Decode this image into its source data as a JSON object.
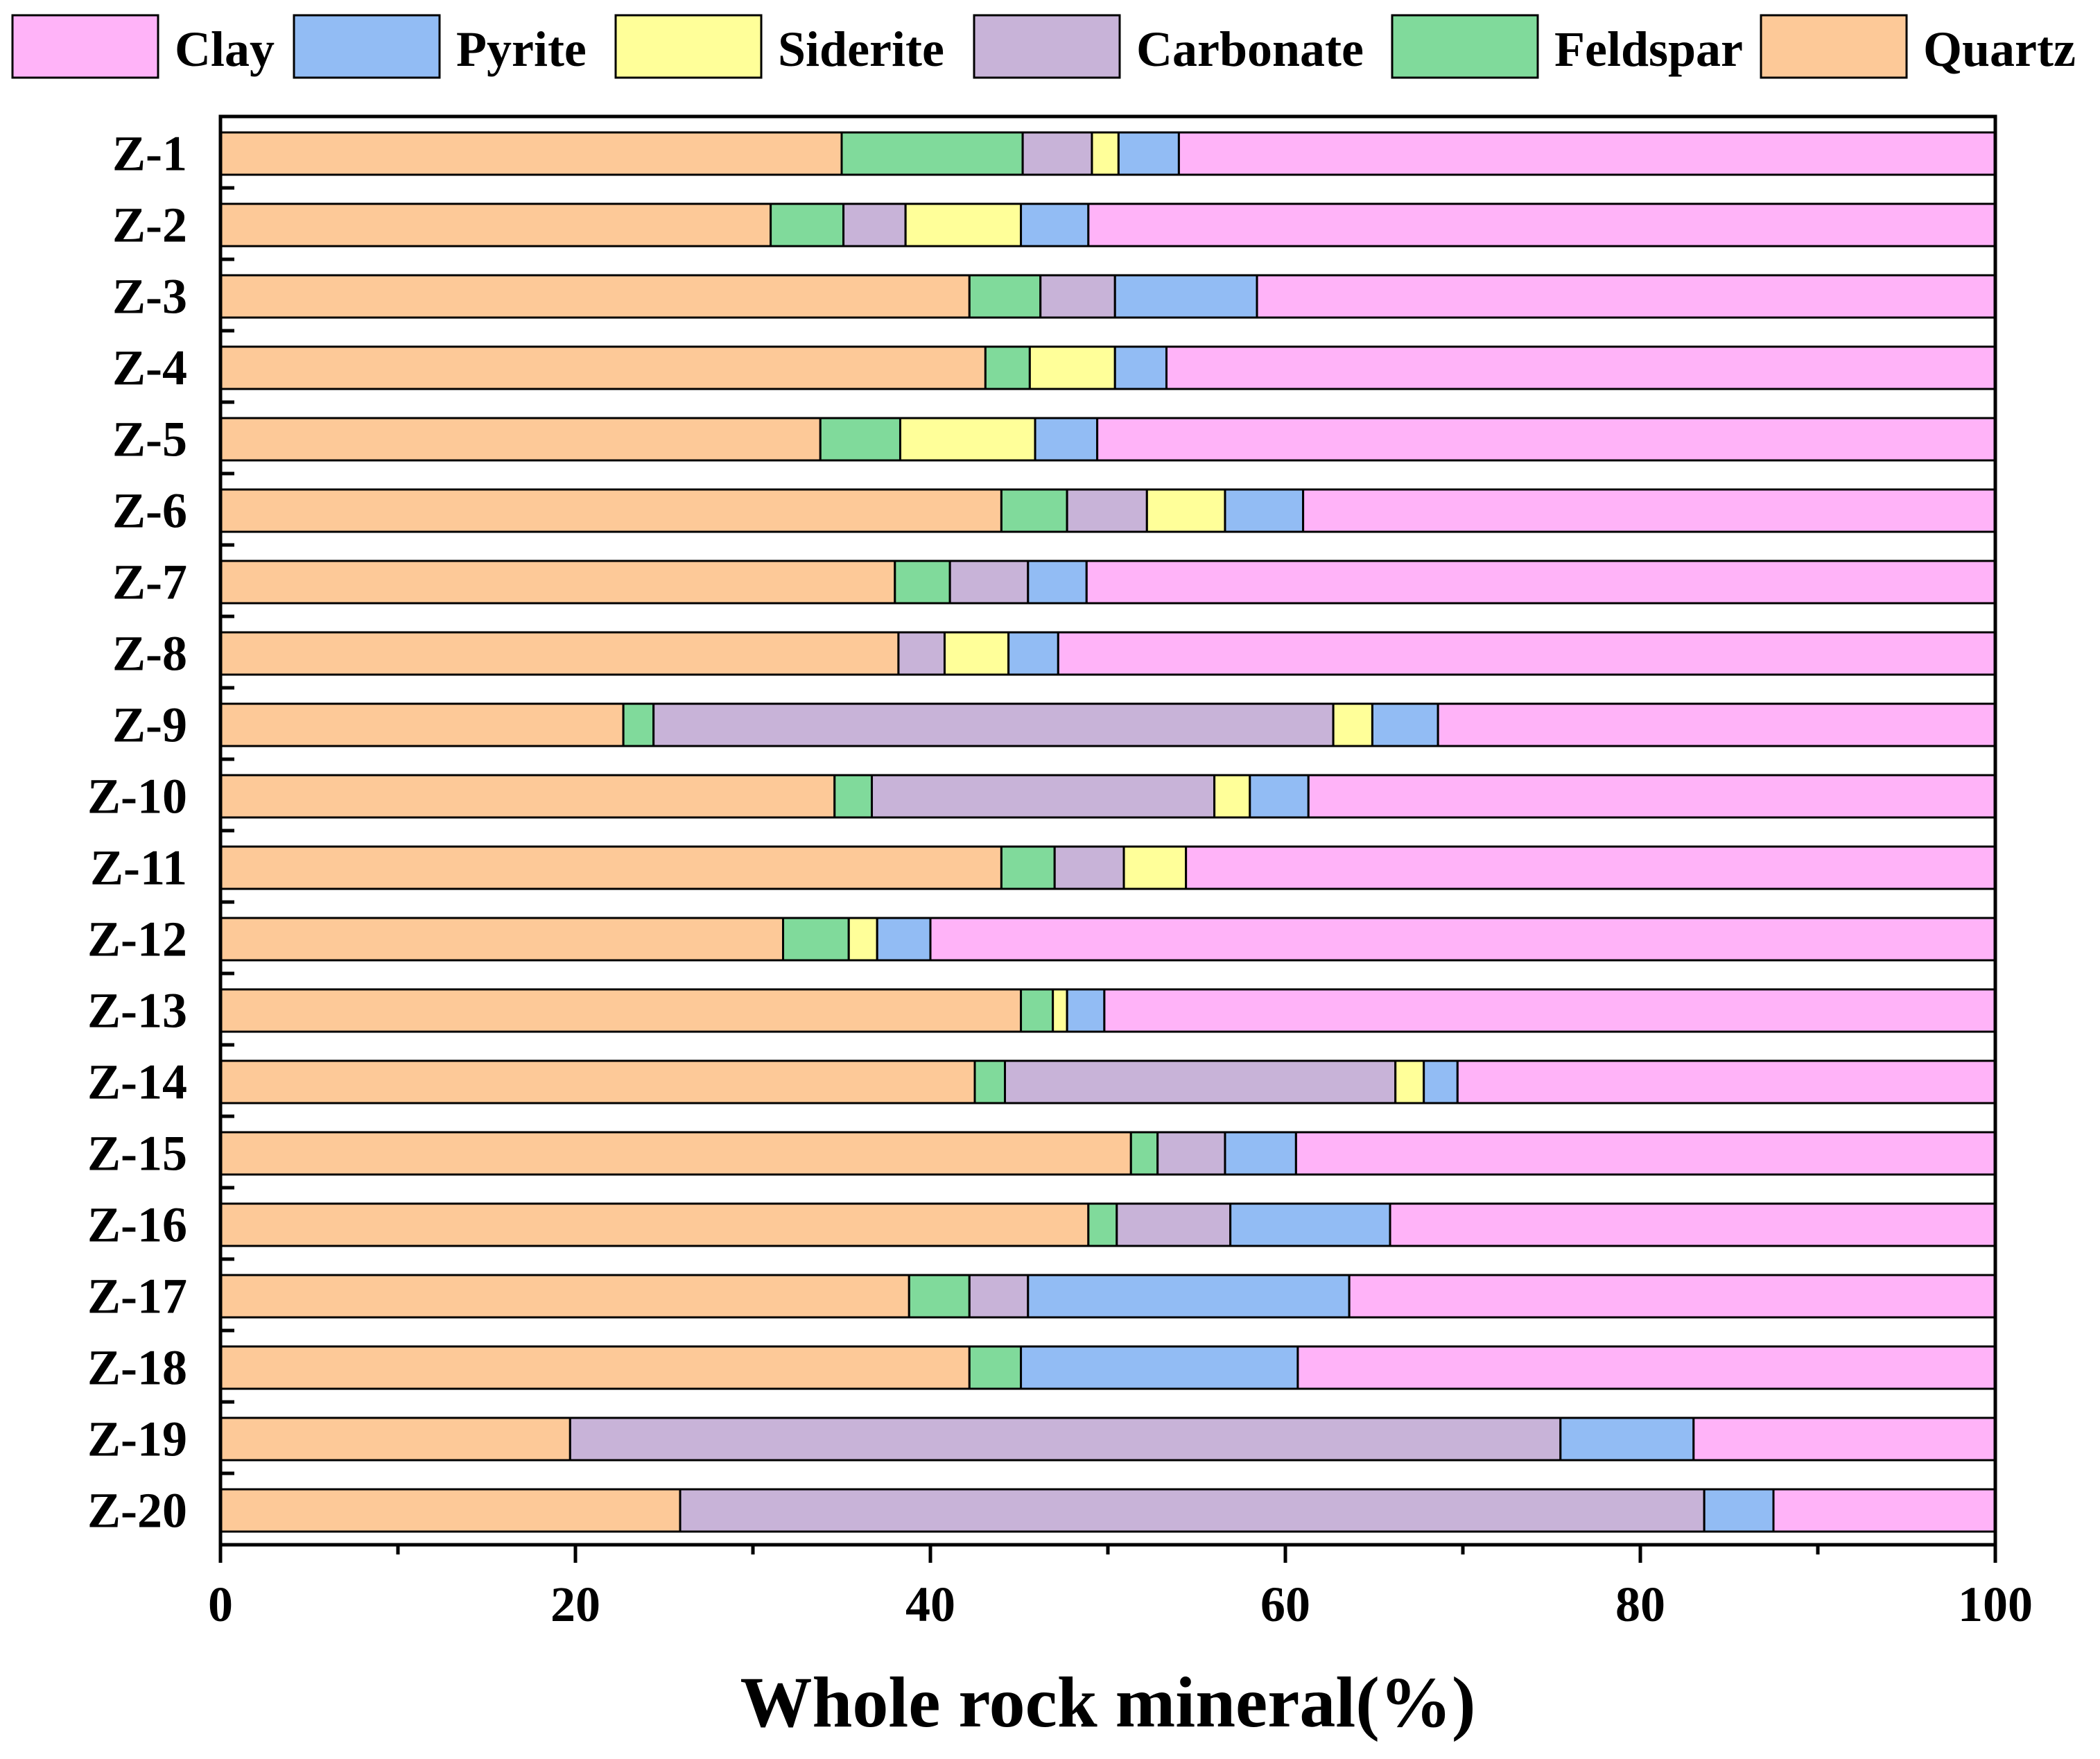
{
  "chart_data": {
    "type": "bar",
    "orientation": "horizontal",
    "stacked": true,
    "title": "",
    "xlabel": "Whole rock mineral(%)",
    "ylabel": "",
    "xlim": [
      0,
      100
    ],
    "xticks": [
      "0",
      "20",
      "40",
      "60",
      "80",
      "100"
    ],
    "grid": false,
    "legend_position": "top",
    "categories": [
      "Z-1",
      "Z-2",
      "Z-3",
      "Z-4",
      "Z-5",
      "Z-6",
      "Z-7",
      "Z-8",
      "Z-9",
      "Z-10",
      "Z-11",
      "Z-12",
      "Z-13",
      "Z-14",
      "Z-15",
      "Z-16",
      "Z-17",
      "Z-18",
      "Z-19",
      "Z-20"
    ],
    "legend": [
      "Clay",
      "Pyrite",
      "Siderite",
      "Carbonate",
      "Feldspar",
      "Quartz"
    ],
    "series": [
      {
        "name": "Quartz",
        "color": "#FDC998",
        "values": [
          35,
          31,
          42.2,
          43.1,
          33.8,
          44,
          38,
          38.2,
          22.7,
          34.6,
          44,
          31.7,
          45.1,
          42.5,
          51.3,
          48.9,
          38.8,
          42.2,
          19.7,
          25.9
        ]
      },
      {
        "name": "Feldspar",
        "color": "#80DA9B",
        "values": [
          10.2,
          4.1,
          4,
          2.5,
          4.5,
          3.7,
          3.1,
          0,
          1.7,
          2.1,
          3,
          3.7,
          1.8,
          1.7,
          1.5,
          1.6,
          3.4,
          2.9,
          0,
          0
        ]
      },
      {
        "name": "Carbonate",
        "color": "#C8B3D8",
        "values": [
          3.9,
          3.5,
          4.2,
          0,
          0,
          4.5,
          4.4,
          2.6,
          38.3,
          19.3,
          3.9,
          0,
          0,
          22,
          3.8,
          6.4,
          3.3,
          0,
          55.8,
          57.7
        ]
      },
      {
        "name": "Siderite",
        "color": "#FFFF99",
        "values": [
          1.5,
          6.5,
          0,
          4.8,
          7.6,
          4.4,
          0,
          3.6,
          2.2,
          2,
          3.5,
          1.6,
          0.8,
          1.6,
          0,
          0,
          0,
          0,
          0,
          0
        ]
      },
      {
        "name": "Pyrite",
        "color": "#92BCF4",
        "values": [
          3.4,
          3.8,
          8,
          2.9,
          3.5,
          4.4,
          3.3,
          2.8,
          3.7,
          3.3,
          0,
          3,
          2.1,
          1.9,
          4,
          9,
          18.1,
          15.6,
          7.5,
          3.9
        ]
      },
      {
        "name": "Clay",
        "color": "#FFB3F8",
        "values": [
          46,
          51.1,
          41.6,
          46.7,
          50.6,
          39,
          51.2,
          52.8,
          31.4,
          38.7,
          45.6,
          60,
          50.2,
          30.3,
          39.4,
          34.1,
          36.4,
          39.3,
          17,
          12.5
        ]
      }
    ]
  }
}
